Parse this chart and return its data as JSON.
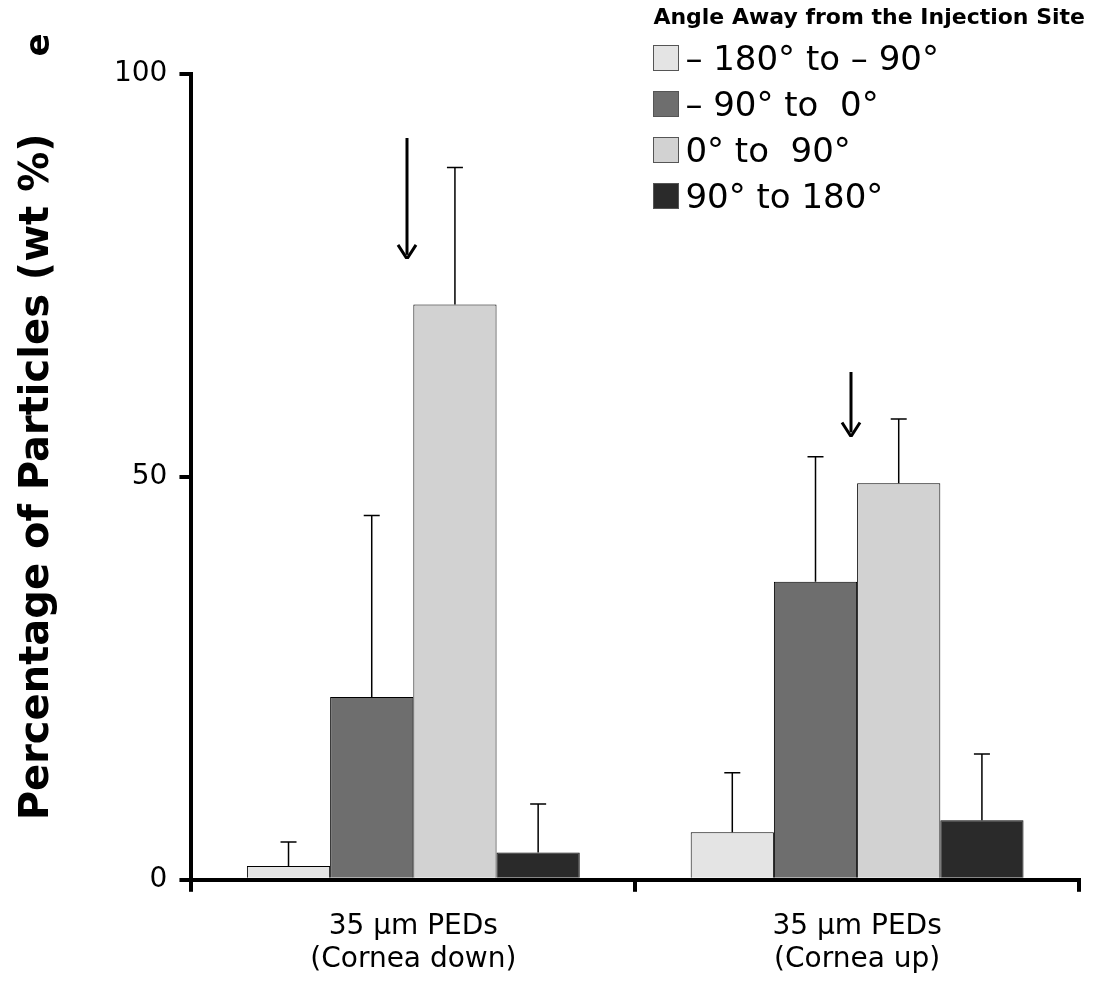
{
  "chart_data": {
    "type": "bar",
    "title": "e",
    "legend_title": "Angle Away from the Injection Site",
    "ylabel": "Percentage of Particles (wt %)",
    "categories": [
      "35 µm PEDs\n(Cornea down)",
      "35 µm PEDs\n(Cornea up)"
    ],
    "series": [
      {
        "name": "– 180° to – 90°",
        "color": "#e4e4e4",
        "values": [
          1.7,
          5.9
        ],
        "errors": [
          [
            1.7,
            4.7
          ],
          [
            5.9,
            13.3
          ]
        ]
      },
      {
        "name": "– 90° to  0°",
        "color": "#6e6e6e",
        "values": [
          22.7,
          37
        ],
        "errors": [
          [
            22.7,
            45.2
          ],
          [
            37,
            52.5
          ]
        ]
      },
      {
        "name": "0° to  90°",
        "color": "#d2d2d2",
        "values": [
          71.4,
          49.2
        ],
        "errors": [
          [
            71.4,
            88.4
          ],
          [
            49.2,
            57.2
          ]
        ]
      },
      {
        "name": "90° to 180°",
        "color": "#2a2a2a",
        "values": [
          3.4,
          7.4
        ],
        "errors": [
          [
            3.4,
            9.4
          ],
          [
            7.4,
            15.6
          ]
        ]
      }
    ],
    "ylim": [
      0,
      100
    ],
    "yticks": [
      0,
      50,
      100
    ],
    "grid": false,
    "legend": "top right"
  }
}
